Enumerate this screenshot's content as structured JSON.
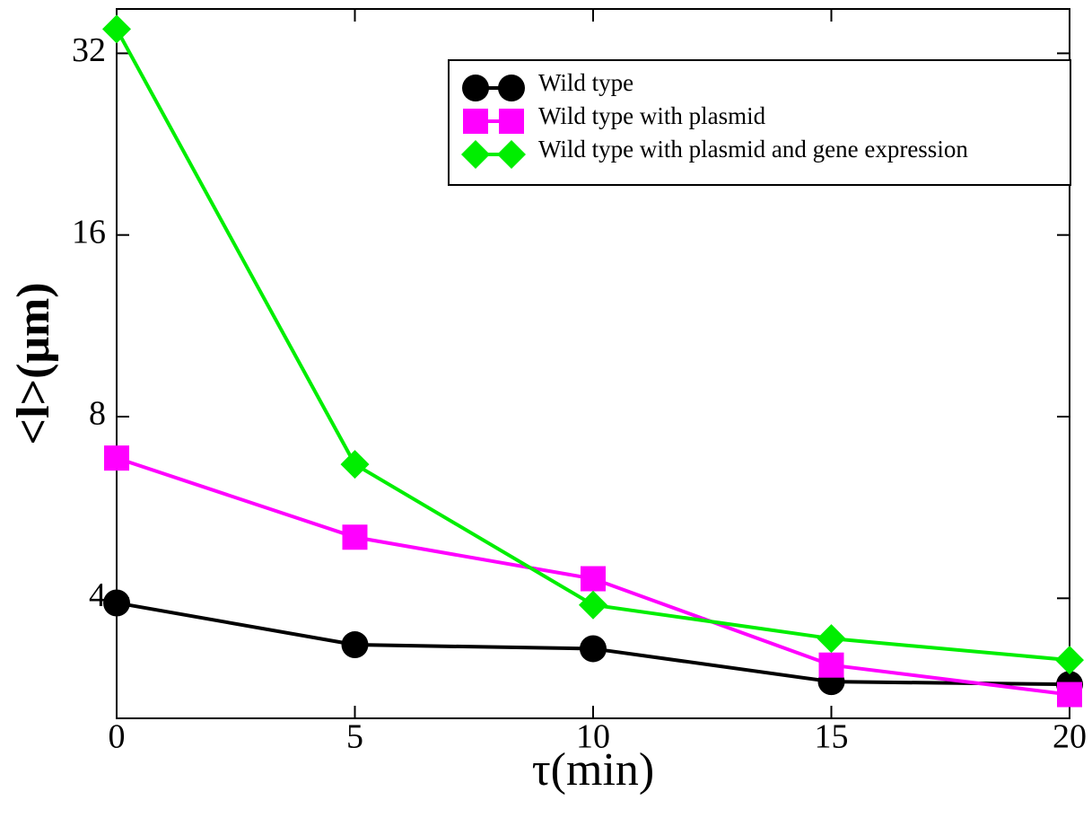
{
  "chart_data": {
    "type": "line",
    "xlabel": "τ(min)",
    "ylabel": "<l>(μm)",
    "x": [
      0,
      5,
      10,
      15,
      20
    ],
    "series": [
      {
        "name": "Wild type",
        "color": "#000000",
        "marker": "circle",
        "values": [
          3.93,
          3.35,
          3.3,
          2.91,
          2.88
        ]
      },
      {
        "name": "Wild type with plasmid",
        "color": "#ff00ff",
        "marker": "square",
        "values": [
          6.83,
          5.05,
          4.31,
          3.1,
          2.77
        ]
      },
      {
        "name": "Wild type with plasmid and gene expression",
        "color": "#00ee00",
        "marker": "diamond",
        "values": [
          35.1,
          6.67,
          3.9,
          3.43,
          3.16
        ]
      }
    ],
    "xlim": [
      0,
      20
    ],
    "xticks": [
      0,
      5,
      10,
      15,
      20
    ],
    "ylim": [
      2.53,
      37.9
    ],
    "yticks": [
      4,
      8,
      16,
      32
    ],
    "log_y": true,
    "grid": false,
    "legend": "upper right"
  }
}
